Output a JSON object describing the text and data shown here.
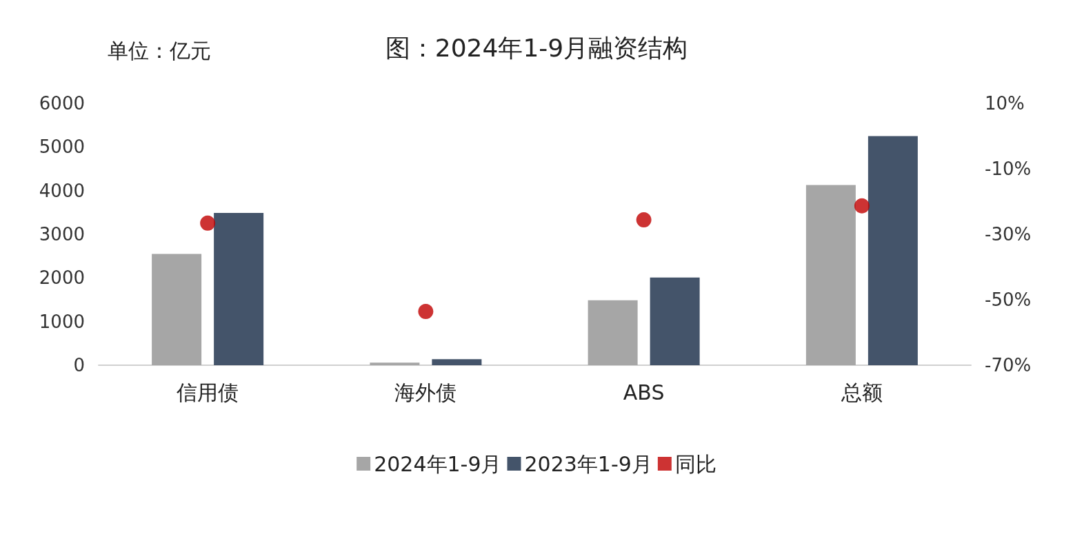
{
  "chart_data": {
    "type": "bar",
    "title": "图：2024年1-9月融资结构",
    "ylabel": "单位：亿元",
    "categories": [
      "信用债",
      "海外债",
      "ABS",
      "总额"
    ],
    "series": [
      {
        "name": "2024年1-9月",
        "color": "#a6a6a6",
        "values": [
          2550,
          60,
          1490,
          4130
        ]
      },
      {
        "name": "2023年1-9月",
        "color": "#44546a",
        "values": [
          3490,
          140,
          2010,
          5250
        ]
      },
      {
        "name": "同比",
        "type": "scatter",
        "axis": "y2",
        "color": "#c00000",
        "marker": "circle",
        "x": [
          "信用债",
          "海外债",
          "ABS",
          "总额"
        ],
        "values": [
          -26.6,
          -53.6,
          -25.6,
          -21.3
        ]
      }
    ],
    "ylim": [
      0,
      6000
    ],
    "yticks": [
      0,
      1000,
      2000,
      3000,
      4000,
      5000,
      6000
    ],
    "y2lim": [
      -70,
      10
    ],
    "y2ticks": [
      {
        "value": -70,
        "label": "-70%"
      },
      {
        "value": -50,
        "label": "-50%"
      },
      {
        "value": -30,
        "label": "-30%"
      },
      {
        "value": -10,
        "label": "-10%"
      },
      {
        "value": 10,
        "label": "10%"
      }
    ],
    "grid": false,
    "legend": "bottom"
  }
}
